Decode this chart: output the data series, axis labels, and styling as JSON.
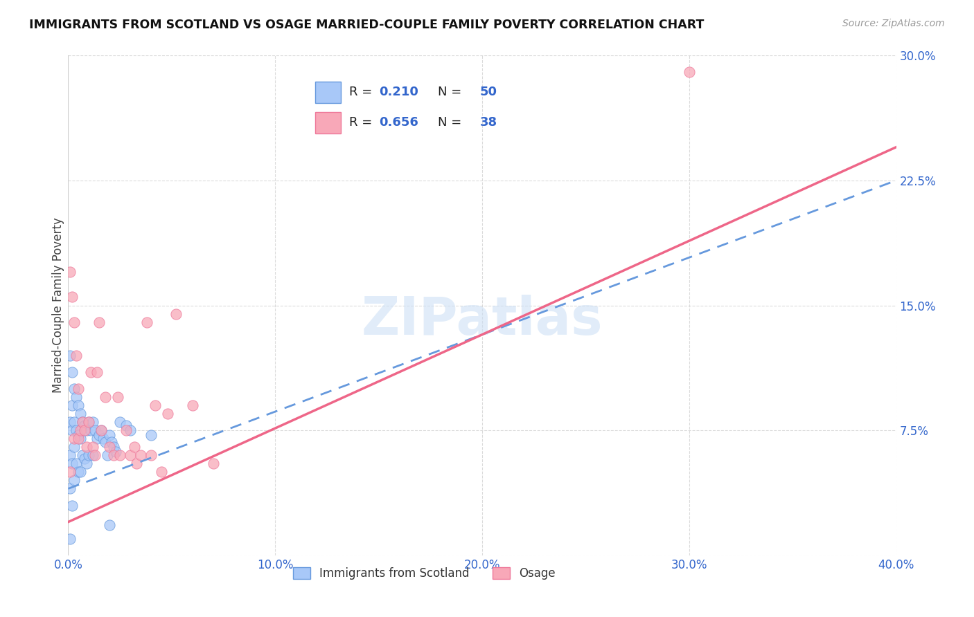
{
  "title": "IMMIGRANTS FROM SCOTLAND VS OSAGE MARRIED-COUPLE FAMILY POVERTY CORRELATION CHART",
  "source": "Source: ZipAtlas.com",
  "ylabel": "Married-Couple Family Poverty",
  "xlim": [
    0.0,
    0.4
  ],
  "ylim": [
    0.0,
    0.3
  ],
  "xticks": [
    0.0,
    0.1,
    0.2,
    0.3,
    0.4
  ],
  "yticks": [
    0.0,
    0.075,
    0.15,
    0.225,
    0.3
  ],
  "xticklabels": [
    "0.0%",
    "10.0%",
    "20.0%",
    "30.0%",
    "40.0%"
  ],
  "yticklabels": [
    "",
    "7.5%",
    "15.0%",
    "22.5%",
    "30.0%"
  ],
  "scotland_color": "#a8c8f8",
  "osage_color": "#f8a8b8",
  "scotland_edge_color": "#6699dd",
  "osage_edge_color": "#ee7799",
  "scotland_line_color": "#6699dd",
  "osage_line_color": "#ee6688",
  "label_color": "#3366cc",
  "scotland_R": 0.21,
  "scotland_N": 50,
  "osage_R": 0.656,
  "osage_N": 38,
  "watermark": "ZIPatlas",
  "scotland_points_x": [
    0.001,
    0.001,
    0.001,
    0.001,
    0.001,
    0.002,
    0.002,
    0.002,
    0.002,
    0.002,
    0.003,
    0.003,
    0.003,
    0.003,
    0.004,
    0.004,
    0.004,
    0.005,
    0.005,
    0.005,
    0.006,
    0.006,
    0.006,
    0.007,
    0.007,
    0.008,
    0.008,
    0.009,
    0.009,
    0.01,
    0.01,
    0.011,
    0.012,
    0.012,
    0.013,
    0.014,
    0.015,
    0.016,
    0.017,
    0.018,
    0.019,
    0.02,
    0.021,
    0.022,
    0.023,
    0.025,
    0.028,
    0.03,
    0.04,
    0.02
  ],
  "scotland_points_y": [
    0.12,
    0.08,
    0.06,
    0.04,
    0.01,
    0.11,
    0.09,
    0.075,
    0.055,
    0.03,
    0.1,
    0.08,
    0.065,
    0.045,
    0.095,
    0.075,
    0.055,
    0.09,
    0.072,
    0.05,
    0.085,
    0.07,
    0.05,
    0.08,
    0.06,
    0.078,
    0.058,
    0.075,
    0.055,
    0.08,
    0.06,
    0.075,
    0.08,
    0.06,
    0.075,
    0.07,
    0.072,
    0.075,
    0.07,
    0.068,
    0.06,
    0.072,
    0.068,
    0.065,
    0.062,
    0.08,
    0.078,
    0.075,
    0.072,
    0.018
  ],
  "osage_points_x": [
    0.001,
    0.001,
    0.002,
    0.003,
    0.003,
    0.004,
    0.005,
    0.005,
    0.006,
    0.007,
    0.008,
    0.009,
    0.01,
    0.011,
    0.012,
    0.013,
    0.014,
    0.015,
    0.016,
    0.018,
    0.02,
    0.022,
    0.024,
    0.025,
    0.028,
    0.03,
    0.032,
    0.033,
    0.035,
    0.038,
    0.04,
    0.042,
    0.045,
    0.048,
    0.052,
    0.06,
    0.07,
    0.3
  ],
  "osage_points_y": [
    0.17,
    0.05,
    0.155,
    0.14,
    0.07,
    0.12,
    0.1,
    0.07,
    0.075,
    0.08,
    0.075,
    0.065,
    0.08,
    0.11,
    0.065,
    0.06,
    0.11,
    0.14,
    0.075,
    0.095,
    0.065,
    0.06,
    0.095,
    0.06,
    0.075,
    0.06,
    0.065,
    0.055,
    0.06,
    0.14,
    0.06,
    0.09,
    0.05,
    0.085,
    0.145,
    0.09,
    0.055,
    0.29
  ],
  "scot_line_x0": 0.0,
  "scot_line_y0": 0.04,
  "scot_line_x1": 0.4,
  "scot_line_y1": 0.225,
  "osage_line_x0": 0.0,
  "osage_line_y0": 0.02,
  "osage_line_x1": 0.4,
  "osage_line_y1": 0.245
}
